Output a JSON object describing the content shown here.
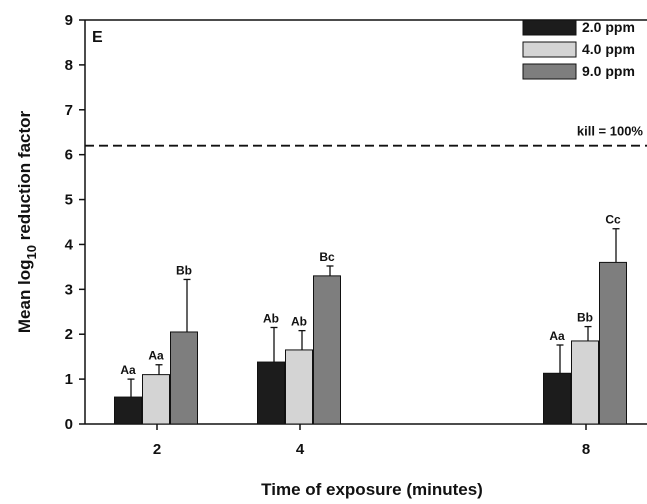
{
  "panel_label": "E",
  "chart_data": {
    "type": "bar",
    "x_title": "Time of exposure (minutes)",
    "y_title": {
      "prefix": "Mean log",
      "subscript": "10",
      "suffix": " reduction factor"
    },
    "categories": [
      "2",
      "4",
      "8"
    ],
    "x_positions": [
      2,
      4,
      8
    ],
    "ylim": [
      0,
      9
    ],
    "yticks": [
      0,
      1,
      2,
      3,
      4,
      5,
      6,
      7,
      8,
      9
    ],
    "grid": false,
    "legend_position": "top-right",
    "series": [
      {
        "name": "2.0 ppm",
        "color": "#1c1c1c",
        "values": [
          0.6,
          1.38,
          1.13
        ],
        "errors": [
          0.4,
          0.77,
          0.63
        ],
        "labels": [
          "Aa",
          "Ab",
          "Aa"
        ]
      },
      {
        "name": "4.0 ppm",
        "color": "#d4d4d4",
        "values": [
          1.1,
          1.65,
          1.85
        ],
        "errors": [
          0.22,
          0.43,
          0.32
        ],
        "labels": [
          "Aa",
          "Ab",
          "Bb"
        ]
      },
      {
        "name": "9.0 ppm",
        "color": "#7e7e7e",
        "values": [
          2.05,
          3.3,
          3.6
        ],
        "errors": [
          1.17,
          0.22,
          0.75
        ],
        "labels": [
          "Bb",
          "Bc",
          "Cc"
        ]
      }
    ],
    "reference_line": {
      "value": 6.2,
      "label": "kill = 100%",
      "style": "dashed"
    }
  }
}
